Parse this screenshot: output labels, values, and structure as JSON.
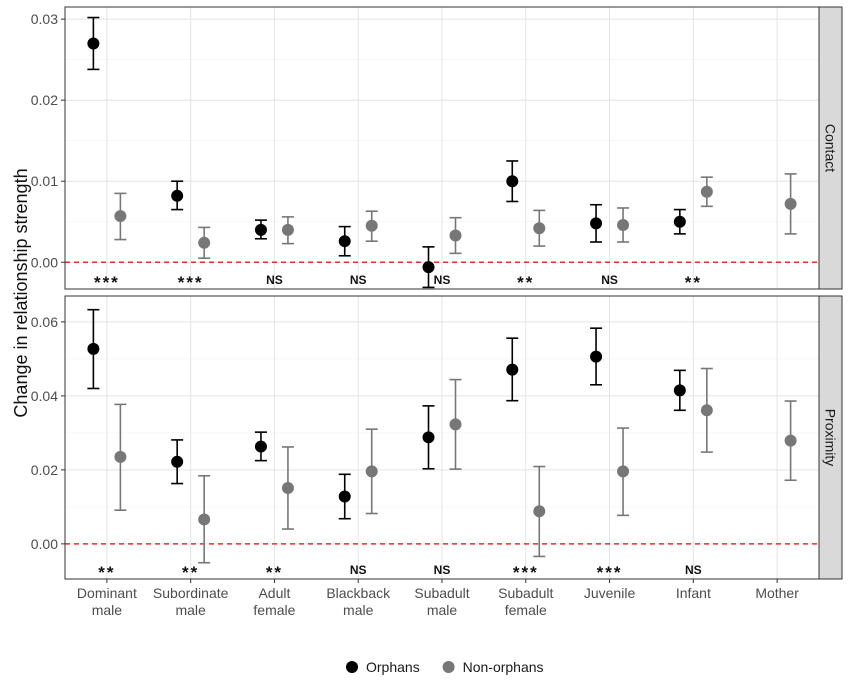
{
  "chart_data": {
    "type": "scatter",
    "ylabel": "Change in relationship strength",
    "categories": [
      [
        "Dominant",
        "male"
      ],
      [
        "Subordinate",
        "male"
      ],
      [
        "Adult",
        "female"
      ],
      [
        "Blackback",
        "male"
      ],
      [
        "Subadult",
        "male"
      ],
      [
        "Subadult",
        "female"
      ],
      [
        "Juvenile"
      ],
      [
        "Infant"
      ],
      [
        "Mother"
      ]
    ],
    "legend": {
      "position": "bottom",
      "items": [
        {
          "label": "Orphans",
          "color": "#000000"
        },
        {
          "label": "Non-orphans",
          "color": "#777777"
        }
      ]
    },
    "reference_line": {
      "y": 0,
      "color": "#e03030",
      "style": "dashed"
    },
    "panels": [
      {
        "strip": "Contact",
        "ylim": [
          -0.0033,
          0.0315
        ],
        "yticks": [
          0.0,
          0.01,
          0.02,
          0.03
        ],
        "ytick_labels": [
          "0.00",
          "0.01",
          "0.02",
          "0.03"
        ],
        "series": [
          {
            "name": "Orphans",
            "color": "#000000",
            "values": [
              0.027,
              0.0082,
              0.004,
              0.0026,
              -0.0006,
              0.01,
              0.0048,
              0.005,
              null
            ],
            "lower": [
              0.0238,
              0.0065,
              0.0029,
              0.0008,
              -0.0031,
              0.0075,
              0.0025,
              0.0035,
              null
            ],
            "upper": [
              0.0302,
              0.01,
              0.0052,
              0.0044,
              0.0019,
              0.0125,
              0.0071,
              0.0065,
              null
            ]
          },
          {
            "name": "Non-orphans",
            "color": "#777777",
            "values": [
              0.0057,
              0.0024,
              0.004,
              0.0045,
              0.0033,
              0.0042,
              0.0046,
              0.0087,
              0.0072
            ],
            "lower": [
              0.0028,
              0.0005,
              0.0023,
              0.0026,
              0.0011,
              0.002,
              0.0025,
              0.0069,
              0.0035
            ],
            "upper": [
              0.0085,
              0.0043,
              0.0056,
              0.0063,
              0.0055,
              0.0064,
              0.0067,
              0.0105,
              0.0109
            ]
          }
        ],
        "significance": [
          "***",
          "***",
          "NS",
          "NS",
          "NS",
          "**",
          "NS",
          "**",
          ""
        ]
      },
      {
        "strip": "Proximity",
        "ylim": [
          -0.0095,
          0.067
        ],
        "yticks": [
          0.0,
          0.02,
          0.04,
          0.06
        ],
        "ytick_labels": [
          "0.00",
          "0.02",
          "0.04",
          "0.06"
        ],
        "series": [
          {
            "name": "Orphans",
            "color": "#000000",
            "values": [
              0.0527,
              0.0222,
              0.0263,
              0.0128,
              0.0288,
              0.0471,
              0.0506,
              0.0415,
              null
            ],
            "lower": [
              0.042,
              0.0163,
              0.0225,
              0.0068,
              0.0203,
              0.0387,
              0.043,
              0.0361,
              null
            ],
            "upper": [
              0.0633,
              0.0281,
              0.0302,
              0.0188,
              0.0373,
              0.0556,
              0.0583,
              0.0469,
              null
            ]
          },
          {
            "name": "Non-orphans",
            "color": "#777777",
            "values": [
              0.0235,
              0.0066,
              0.0151,
              0.0196,
              0.0323,
              0.0088,
              0.0196,
              0.0361,
              0.0279
            ],
            "lower": [
              0.0091,
              -0.0051,
              0.004,
              0.0082,
              0.0202,
              -0.0034,
              0.0077,
              0.0248,
              0.0172
            ],
            "upper": [
              0.0377,
              0.0184,
              0.0262,
              0.031,
              0.0444,
              0.0209,
              0.0313,
              0.0474,
              0.0386
            ]
          }
        ],
        "significance": [
          "**",
          "**",
          "**",
          "NS",
          "NS",
          "***",
          "***",
          "NS",
          ""
        ]
      }
    ]
  }
}
